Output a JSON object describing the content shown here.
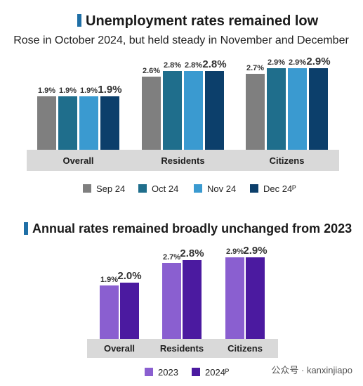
{
  "top": {
    "title": "Unemployment rates remained low",
    "subtitle": "Rose in October 2024, but held steady in November and December"
  },
  "bottom": {
    "title": "Annual rates remained broadly unchanged from 2023"
  },
  "watermark": "公众号 · kanxinjiapo",
  "colors": {
    "accent_bar": "#1f6fa6",
    "sep24": "#7f7f7f",
    "oct24": "#1f6e8c",
    "nov24": "#3a9ad0",
    "dec24": "#0c3f6b",
    "y2023": "#8a5fd0",
    "y2024": "#4b1aa0",
    "axis_band": "#d9d9d9"
  },
  "chart_data": [
    {
      "type": "bar",
      "title": "Unemployment rates remained low",
      "subtitle": "Rose in October 2024, but held steady in November and December",
      "categories": [
        "Overall",
        "Residents",
        "Citizens"
      ],
      "series": [
        {
          "name": "Sep 24",
          "values": [
            1.9,
            2.6,
            2.7
          ],
          "labels": [
            "1.9%",
            "2.6%",
            "2.7%"
          ]
        },
        {
          "name": "Oct 24",
          "values": [
            1.9,
            2.8,
            2.9
          ],
          "labels": [
            "1.9%",
            "2.8%",
            "2.9%"
          ]
        },
        {
          "name": "Nov 24",
          "values": [
            1.9,
            2.8,
            2.9
          ],
          "labels": [
            "1.9%",
            "2.8%",
            "2.9%"
          ]
        },
        {
          "name": "Dec 24ᴾ",
          "values": [
            1.9,
            2.8,
            2.9
          ],
          "labels": [
            "1.9%",
            "2.8%",
            "2.9%"
          ]
        }
      ],
      "ylim": [
        0.0,
        3.0
      ],
      "grid": false,
      "legend": "bottom"
    },
    {
      "type": "bar",
      "title": "Annual rates remained broadly unchanged from 2023",
      "categories": [
        "Overall",
        "Residents",
        "Citizens"
      ],
      "series": [
        {
          "name": "2023",
          "values": [
            1.9,
            2.7,
            2.9
          ],
          "labels": [
            "1.9%",
            "2.7%",
            "2.9%"
          ]
        },
        {
          "name": "2024ᴾ",
          "values": [
            2.0,
            2.8,
            2.9
          ],
          "labels": [
            "2.0%",
            "2.8%",
            "2.9%"
          ]
        }
      ],
      "ylim": [
        0.0,
        3.0
      ],
      "grid": false,
      "legend": "bottom"
    }
  ]
}
